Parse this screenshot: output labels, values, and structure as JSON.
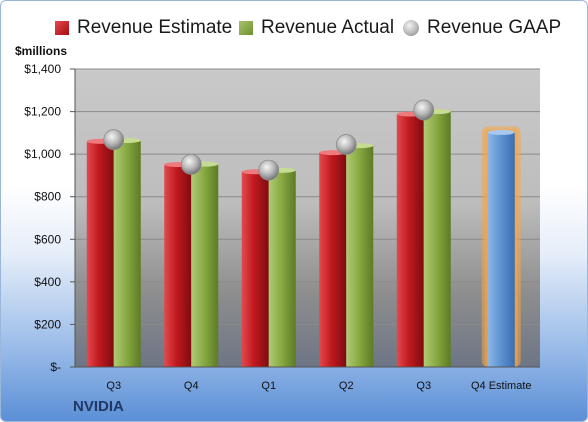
{
  "legend": {
    "estimate": "Revenue Estimate",
    "actual": "Revenue Actual",
    "gaap": "Revenue GAAP"
  },
  "unit_label": "$millions",
  "company": "NVIDIA",
  "colors": {
    "estimate": "#c0191f",
    "actual": "#8aab44",
    "gaap": "#b0b0b0",
    "forecast": "#5f95d4",
    "forecast_glow": "#f6a545"
  },
  "chart_data": {
    "type": "bar",
    "categories": [
      "Q3",
      "Q4",
      "Q1",
      "Q2",
      "Q3",
      "Q4 Estimate"
    ],
    "series": [
      {
        "name": "Revenue Estimate",
        "values": [
          1060,
          951,
          917,
          1007,
          1188,
          1102
        ]
      },
      {
        "name": "Revenue Actual",
        "values": [
          1064,
          953,
          924,
          1040,
          1200,
          null
        ]
      },
      {
        "name": "Revenue GAAP",
        "values": [
          1068,
          952,
          925,
          1045,
          1207,
          null
        ]
      }
    ],
    "y_ticks": [
      "$-",
      "$200",
      "$400",
      "$600",
      "$800",
      "$1,000",
      "$1,200",
      "$1,400"
    ],
    "ylim": [
      0,
      1400
    ],
    "ylabel": "$millions",
    "grid": true,
    "legend_position": "top"
  }
}
